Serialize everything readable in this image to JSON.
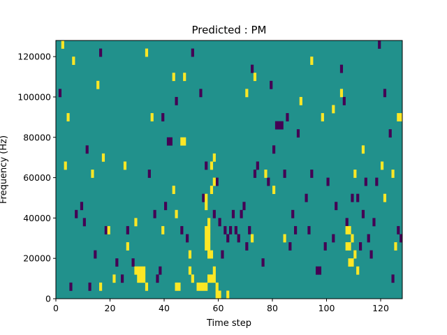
{
  "chart_data": {
    "type": "heatmap",
    "title": "Predicted : PM",
    "xlabel": "Time step",
    "ylabel": "Frequency (Hz)",
    "xlim": [
      0,
      128
    ],
    "ylim": [
      0,
      128000
    ],
    "x_ticks": [
      0,
      20,
      40,
      60,
      80,
      100,
      120
    ],
    "x_tick_labels": [
      "0",
      "20",
      "40",
      "60",
      "80",
      "100",
      "120"
    ],
    "y_ticks": [
      0,
      20000,
      40000,
      60000,
      80000,
      100000,
      120000
    ],
    "y_tick_labels": [
      "0",
      "20000",
      "40000",
      "60000",
      "80000",
      "100000",
      "120000"
    ],
    "colormap": [
      "#440154",
      "#21918c",
      "#fde725"
    ],
    "value_levels": [
      -1,
      0,
      1
    ],
    "background_value": 0,
    "cell_width_steps": 1,
    "cell_height_hz": 4000,
    "high_cells": [
      [
        2,
        124000
      ],
      [
        3,
        64000
      ],
      [
        4,
        88000
      ],
      [
        6,
        116000
      ],
      [
        13,
        60000
      ],
      [
        15,
        104000
      ],
      [
        16,
        4000
      ],
      [
        17,
        68000
      ],
      [
        19,
        32000
      ],
      [
        21,
        8000
      ],
      [
        26,
        24000
      ],
      [
        25,
        64000
      ],
      [
        29,
        36000
      ],
      [
        29,
        12000
      ],
      [
        30,
        12000
      ],
      [
        30,
        8000
      ],
      [
        31,
        12000
      ],
      [
        31,
        8000
      ],
      [
        32,
        12000
      ],
      [
        32,
        8000
      ],
      [
        33,
        120000
      ],
      [
        35,
        88000
      ],
      [
        33,
        4000
      ],
      [
        39,
        32000
      ],
      [
        43,
        108000
      ],
      [
        43,
        52000
      ],
      [
        44,
        4000
      ],
      [
        44,
        40000
      ],
      [
        45,
        4000
      ],
      [
        46,
        76000
      ],
      [
        47,
        76000
      ],
      [
        47,
        108000
      ],
      [
        49,
        20000
      ],
      [
        49,
        12000
      ],
      [
        50,
        8000
      ],
      [
        52,
        4000
      ],
      [
        53,
        4000
      ],
      [
        54,
        4000
      ],
      [
        55,
        4000
      ],
      [
        55,
        48000
      ],
      [
        55,
        44000
      ],
      [
        55,
        32000
      ],
      [
        55,
        28000
      ],
      [
        55,
        24000
      ],
      [
        56,
        36000
      ],
      [
        56,
        32000
      ],
      [
        56,
        28000
      ],
      [
        56,
        24000
      ],
      [
        56,
        20000
      ],
      [
        56,
        8000
      ],
      [
        57,
        8000
      ],
      [
        57,
        20000
      ],
      [
        57,
        52000
      ],
      [
        58,
        12000
      ],
      [
        58,
        8000
      ],
      [
        57,
        64000
      ],
      [
        58,
        68000
      ],
      [
        59,
        4000
      ],
      [
        58,
        56000
      ],
      [
        59,
        0
      ],
      [
        60,
        0
      ],
      [
        63,
        0
      ],
      [
        70,
        100000
      ],
      [
        73,
        108000
      ],
      [
        72,
        28000
      ],
      [
        77,
        60000
      ],
      [
        80,
        52000
      ],
      [
        84,
        28000
      ],
      [
        90,
        96000
      ],
      [
        94,
        116000
      ],
      [
        98,
        88000
      ],
      [
        102,
        92000
      ],
      [
        105,
        100000
      ],
      [
        107,
        32000
      ],
      [
        107,
        24000
      ],
      [
        108,
        32000
      ],
      [
        108,
        24000
      ],
      [
        108,
        16000
      ],
      [
        109,
        28000
      ],
      [
        109,
        16000
      ],
      [
        110,
        20000
      ],
      [
        111,
        12000
      ],
      [
        110,
        60000
      ],
      [
        113,
        72000
      ],
      [
        120,
        64000
      ],
      [
        121,
        48000
      ],
      [
        124,
        60000
      ],
      [
        125,
        24000
      ],
      [
        126,
        88000
      ],
      [
        127,
        88000
      ]
    ],
    "low_cells": [
      [
        1,
        100000
      ],
      [
        5,
        4000
      ],
      [
        7,
        40000
      ],
      [
        9,
        44000
      ],
      [
        10,
        36000
      ],
      [
        11,
        72000
      ],
      [
        12,
        4000
      ],
      [
        14,
        20000
      ],
      [
        16,
        120000
      ],
      [
        18,
        32000
      ],
      [
        22,
        16000
      ],
      [
        24,
        8000
      ],
      [
        26,
        32000
      ],
      [
        28,
        16000
      ],
      [
        34,
        60000
      ],
      [
        36,
        40000
      ],
      [
        37,
        8000
      ],
      [
        38,
        12000
      ],
      [
        39,
        88000
      ],
      [
        40,
        44000
      ],
      [
        41,
        76000
      ],
      [
        42,
        76000
      ],
      [
        44,
        96000
      ],
      [
        46,
        32000
      ],
      [
        48,
        28000
      ],
      [
        50,
        120000
      ],
      [
        53,
        100000
      ],
      [
        54,
        48000
      ],
      [
        55,
        64000
      ],
      [
        58,
        40000
      ],
      [
        59,
        56000
      ],
      [
        60,
        36000
      ],
      [
        61,
        20000
      ],
      [
        62,
        32000
      ],
      [
        63,
        28000
      ],
      [
        64,
        32000
      ],
      [
        65,
        40000
      ],
      [
        66,
        32000
      ],
      [
        67,
        28000
      ],
      [
        68,
        40000
      ],
      [
        69,
        44000
      ],
      [
        70,
        24000
      ],
      [
        71,
        32000
      ],
      [
        72,
        112000
      ],
      [
        73,
        60000
      ],
      [
        74,
        64000
      ],
      [
        76,
        16000
      ],
      [
        78,
        56000
      ],
      [
        79,
        104000
      ],
      [
        80,
        72000
      ],
      [
        81,
        84000
      ],
      [
        82,
        84000
      ],
      [
        83,
        84000
      ],
      [
        84,
        60000
      ],
      [
        85,
        88000
      ],
      [
        86,
        24000
      ],
      [
        87,
        40000
      ],
      [
        88,
        32000
      ],
      [
        89,
        80000
      ],
      [
        92,
        48000
      ],
      [
        93,
        32000
      ],
      [
        94,
        60000
      ],
      [
        96,
        12000
      ],
      [
        97,
        12000
      ],
      [
        99,
        24000
      ],
      [
        100,
        56000
      ],
      [
        102,
        28000
      ],
      [
        103,
        44000
      ],
      [
        105,
        112000
      ],
      [
        106,
        96000
      ],
      [
        107,
        36000
      ],
      [
        109,
        48000
      ],
      [
        111,
        48000
      ],
      [
        112,
        24000
      ],
      [
        113,
        40000
      ],
      [
        114,
        56000
      ],
      [
        115,
        28000
      ],
      [
        116,
        20000
      ],
      [
        117,
        36000
      ],
      [
        118,
        56000
      ],
      [
        119,
        124000
      ],
      [
        121,
        100000
      ],
      [
        123,
        80000
      ],
      [
        124,
        8000
      ],
      [
        126,
        32000
      ],
      [
        127,
        28000
      ]
    ]
  }
}
